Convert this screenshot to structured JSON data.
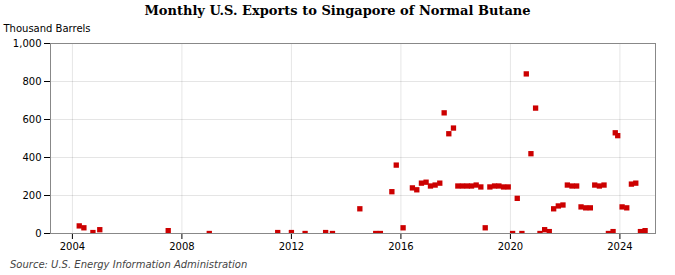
{
  "chart_data": {
    "type": "scatter",
    "title": "Monthly U.S. Exports to Singapore of Normal Butane",
    "ylabel": "Thousand Barrels",
    "annotations": [
      "Source: U.S. Energy Information Administration"
    ],
    "color": "#cc0000",
    "marker": "square",
    "grid": true,
    "xlim": [
      2003.2,
      2025.3
    ],
    "xticks": [
      2004,
      2008,
      2012,
      2016,
      2020,
      2024
    ],
    "ylim": [
      0,
      1000
    ],
    "yticks": [
      0,
      200,
      400,
      600,
      800,
      {
        "value": 1000,
        "label": "1,000"
      }
    ],
    "x": [
      2004.25,
      2004.42,
      2004.75,
      2005.0,
      2007.5,
      2009.0,
      2011.5,
      2012.0,
      2012.5,
      2013.25,
      2013.5,
      2014.5,
      2015.08,
      2015.25,
      2015.67,
      2015.83,
      2016.08,
      2016.42,
      2016.58,
      2016.75,
      2016.92,
      2017.08,
      2017.25,
      2017.42,
      2017.58,
      2017.75,
      2017.92,
      2018.08,
      2018.25,
      2018.42,
      2018.58,
      2018.75,
      2018.92,
      2019.08,
      2019.25,
      2019.42,
      2019.58,
      2019.75,
      2019.92,
      2020.08,
      2020.25,
      2020.42,
      2020.58,
      2020.75,
      2020.92,
      2021.08,
      2021.25,
      2021.42,
      2021.58,
      2021.75,
      2021.92,
      2022.08,
      2022.25,
      2022.42,
      2022.58,
      2022.75,
      2022.92,
      2023.08,
      2023.25,
      2023.42,
      2023.58,
      2023.75,
      2023.83,
      2023.92,
      2024.08,
      2024.25,
      2024.42,
      2024.58,
      2024.75,
      2024.92
    ],
    "values": [
      40,
      30,
      5,
      20,
      15,
      0,
      5,
      5,
      0,
      5,
      0,
      130,
      0,
      0,
      220,
      360,
      30,
      240,
      230,
      265,
      270,
      250,
      255,
      265,
      635,
      525,
      555,
      250,
      250,
      250,
      250,
      255,
      245,
      30,
      245,
      250,
      250,
      245,
      245,
      0,
      185,
      0,
      840,
      420,
      660,
      0,
      20,
      10,
      130,
      145,
      150,
      255,
      250,
      250,
      140,
      135,
      135,
      255,
      250,
      255,
      0,
      10,
      530,
      515,
      140,
      135,
      260,
      265,
      10,
      15
    ]
  }
}
